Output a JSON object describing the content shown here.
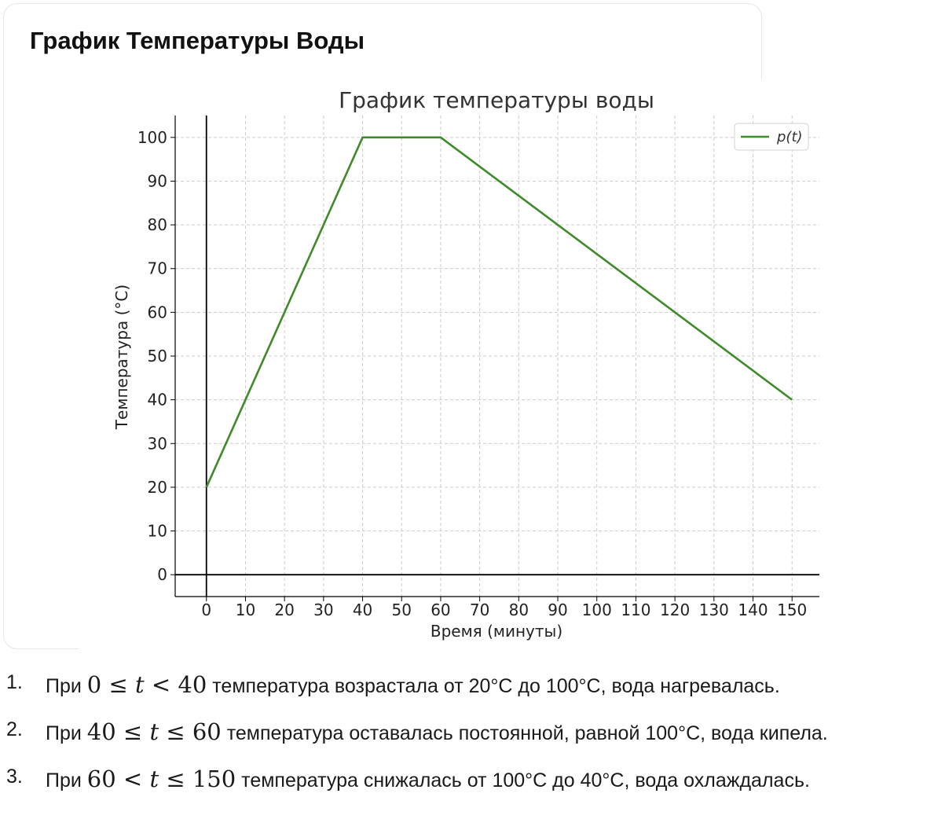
{
  "card": {
    "title": "График Температуры Воды"
  },
  "colors": {
    "series": "#3f8a2b",
    "axis": "#000000",
    "grid": "#cccccc"
  },
  "chart_data": {
    "type": "line",
    "title": "График температуры воды",
    "xlabel": "Время (минуты)",
    "ylabel": "Температура (°C)",
    "xlim": [
      -8,
      157
    ],
    "ylim": [
      -5,
      105
    ],
    "xticks": [
      0,
      10,
      20,
      30,
      40,
      50,
      60,
      70,
      80,
      90,
      100,
      110,
      120,
      130,
      140,
      150
    ],
    "yticks": [
      0,
      10,
      20,
      30,
      40,
      50,
      60,
      70,
      80,
      90,
      100
    ],
    "grid": true,
    "legend_position": "top-right",
    "series": [
      {
        "name": "p(t)",
        "x": [
          0,
          40,
          60,
          150
        ],
        "y": [
          20,
          100,
          100,
          40
        ]
      }
    ]
  },
  "notes": [
    {
      "number": "1.",
      "prefix": "При",
      "math": [
        "0",
        "≤",
        "t",
        "<",
        "40"
      ],
      "text": "температура возрастала от 20°C до 100°C, вода нагревалась."
    },
    {
      "number": "2.",
      "prefix": "При",
      "math": [
        "40",
        "≤",
        "t",
        "≤",
        "60"
      ],
      "text": "температура оставалась постоянной, равной 100°C, вода кипела."
    },
    {
      "number": "3.",
      "prefix": "При",
      "math": [
        "60",
        "<",
        "t",
        "≤",
        "150"
      ],
      "text": "температура снижалась от 100°C до 40°C, вода охлаждалась."
    }
  ]
}
